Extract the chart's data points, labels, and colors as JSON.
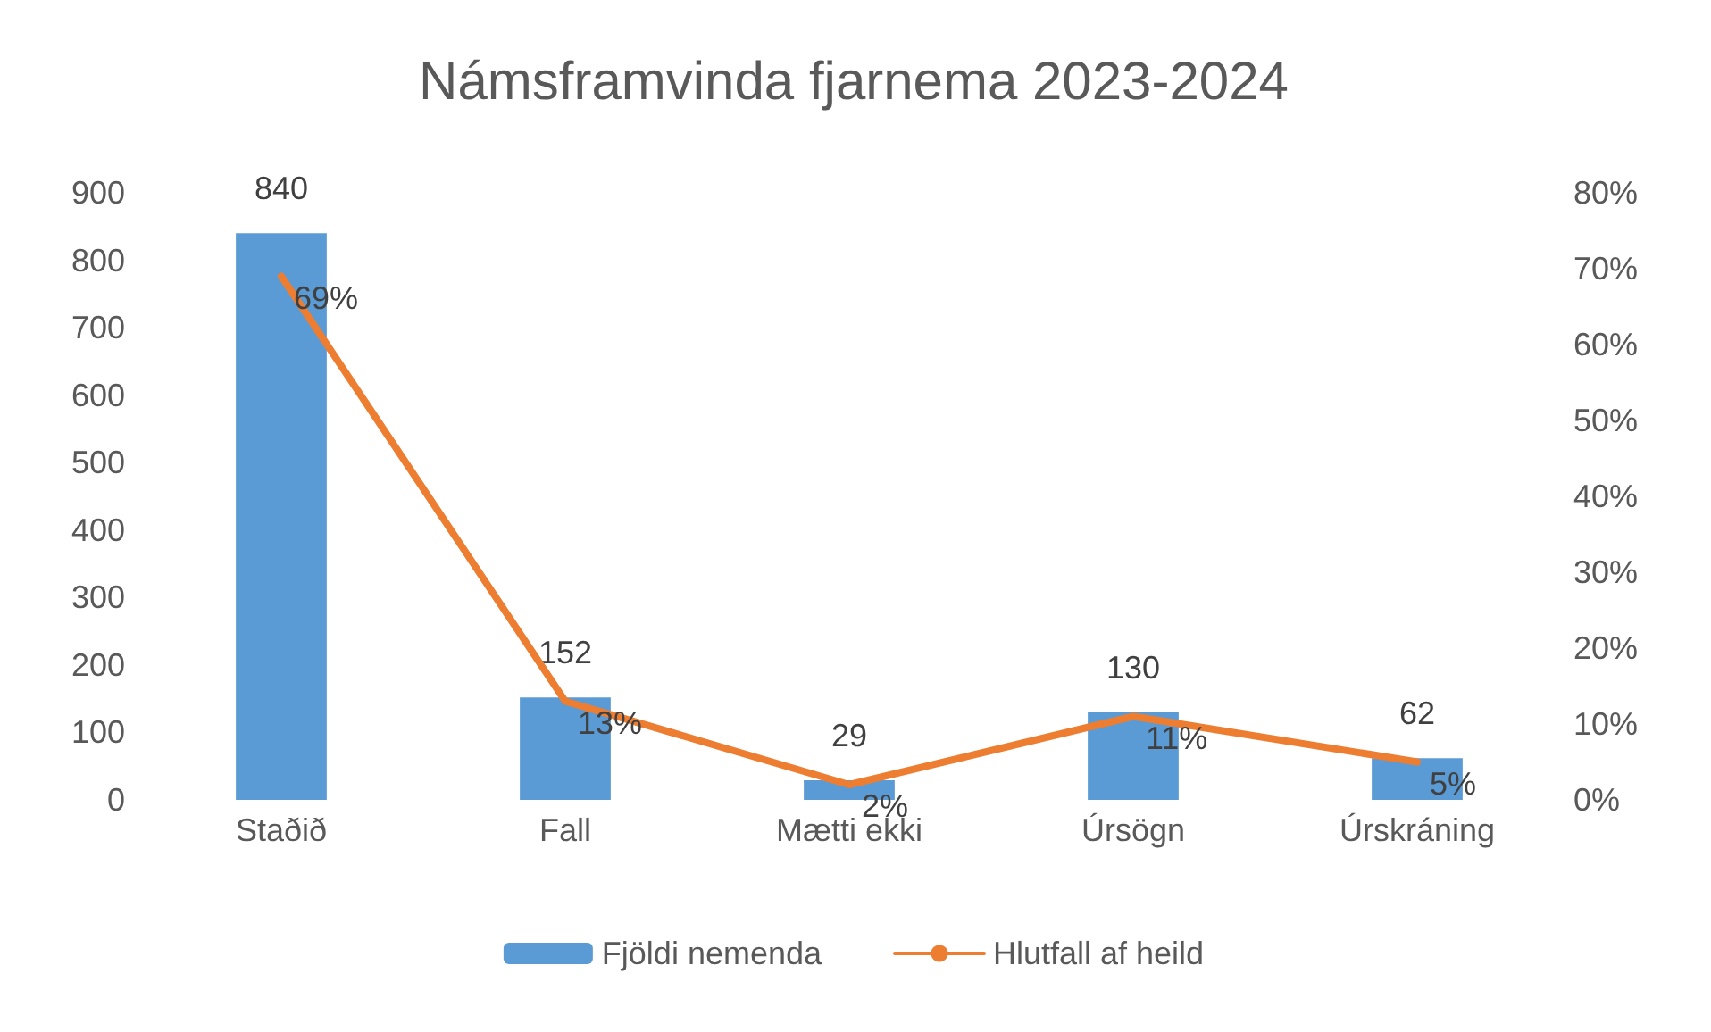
{
  "chart_data": {
    "type": "bar",
    "title": "Námsframvinda fjarnema 2023-2024",
    "categories": [
      "Staðið",
      "Fall",
      "Mætti ekki",
      "Úrsögn",
      "Úrskráning"
    ],
    "series": [
      {
        "name": "Fjöldi nemenda",
        "color": "#5b9bd5",
        "values": [
          840,
          152,
          29,
          130,
          62
        ],
        "value_labels": [
          "840",
          "152",
          "29",
          "130",
          "62"
        ]
      },
      {
        "name": "Hlutfall af heild",
        "type": "line",
        "axis": "y2",
        "color": "#ed7d31",
        "values": [
          69,
          13,
          2,
          11,
          5
        ],
        "value_labels": [
          "69%",
          "13%",
          "2%",
          "11%",
          "5%"
        ]
      }
    ],
    "ylim": [
      0,
      900
    ],
    "yticks": [
      0,
      100,
      200,
      300,
      400,
      500,
      600,
      700,
      800,
      900
    ],
    "y2lim": [
      0,
      80
    ],
    "y2ticks": [
      {
        "value": 0,
        "label": "0%"
      },
      {
        "value": 10,
        "label": "10%"
      },
      {
        "value": 20,
        "label": "20%"
      },
      {
        "value": 30,
        "label": "30%"
      },
      {
        "value": 40,
        "label": "40%"
      },
      {
        "value": 50,
        "label": "50%"
      },
      {
        "value": 60,
        "label": "60%"
      },
      {
        "value": 70,
        "label": "70%"
      },
      {
        "value": 80,
        "label": "80%"
      }
    ],
    "legend": "bottom",
    "marker": "none"
  }
}
